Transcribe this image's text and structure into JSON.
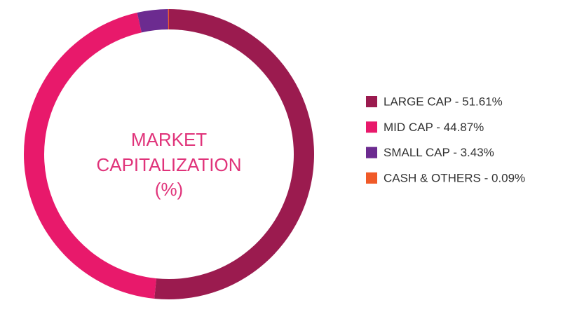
{
  "chart_data": {
    "type": "donut",
    "title": [
      "MARKET",
      "CAPITALIZATION",
      "(%)"
    ],
    "labels": [
      "LARGE CAP - 51.61%",
      "MID CAP - 44.87%",
      "SMALL CAP - 3.43%",
      "CASH & OTHERS - 0.09%"
    ],
    "values": [
      51.61,
      44.87,
      3.43,
      0.09
    ],
    "colors": [
      "#9b1b4f",
      "#e8196b",
      "#6c2b90",
      "#f05a28"
    ]
  }
}
